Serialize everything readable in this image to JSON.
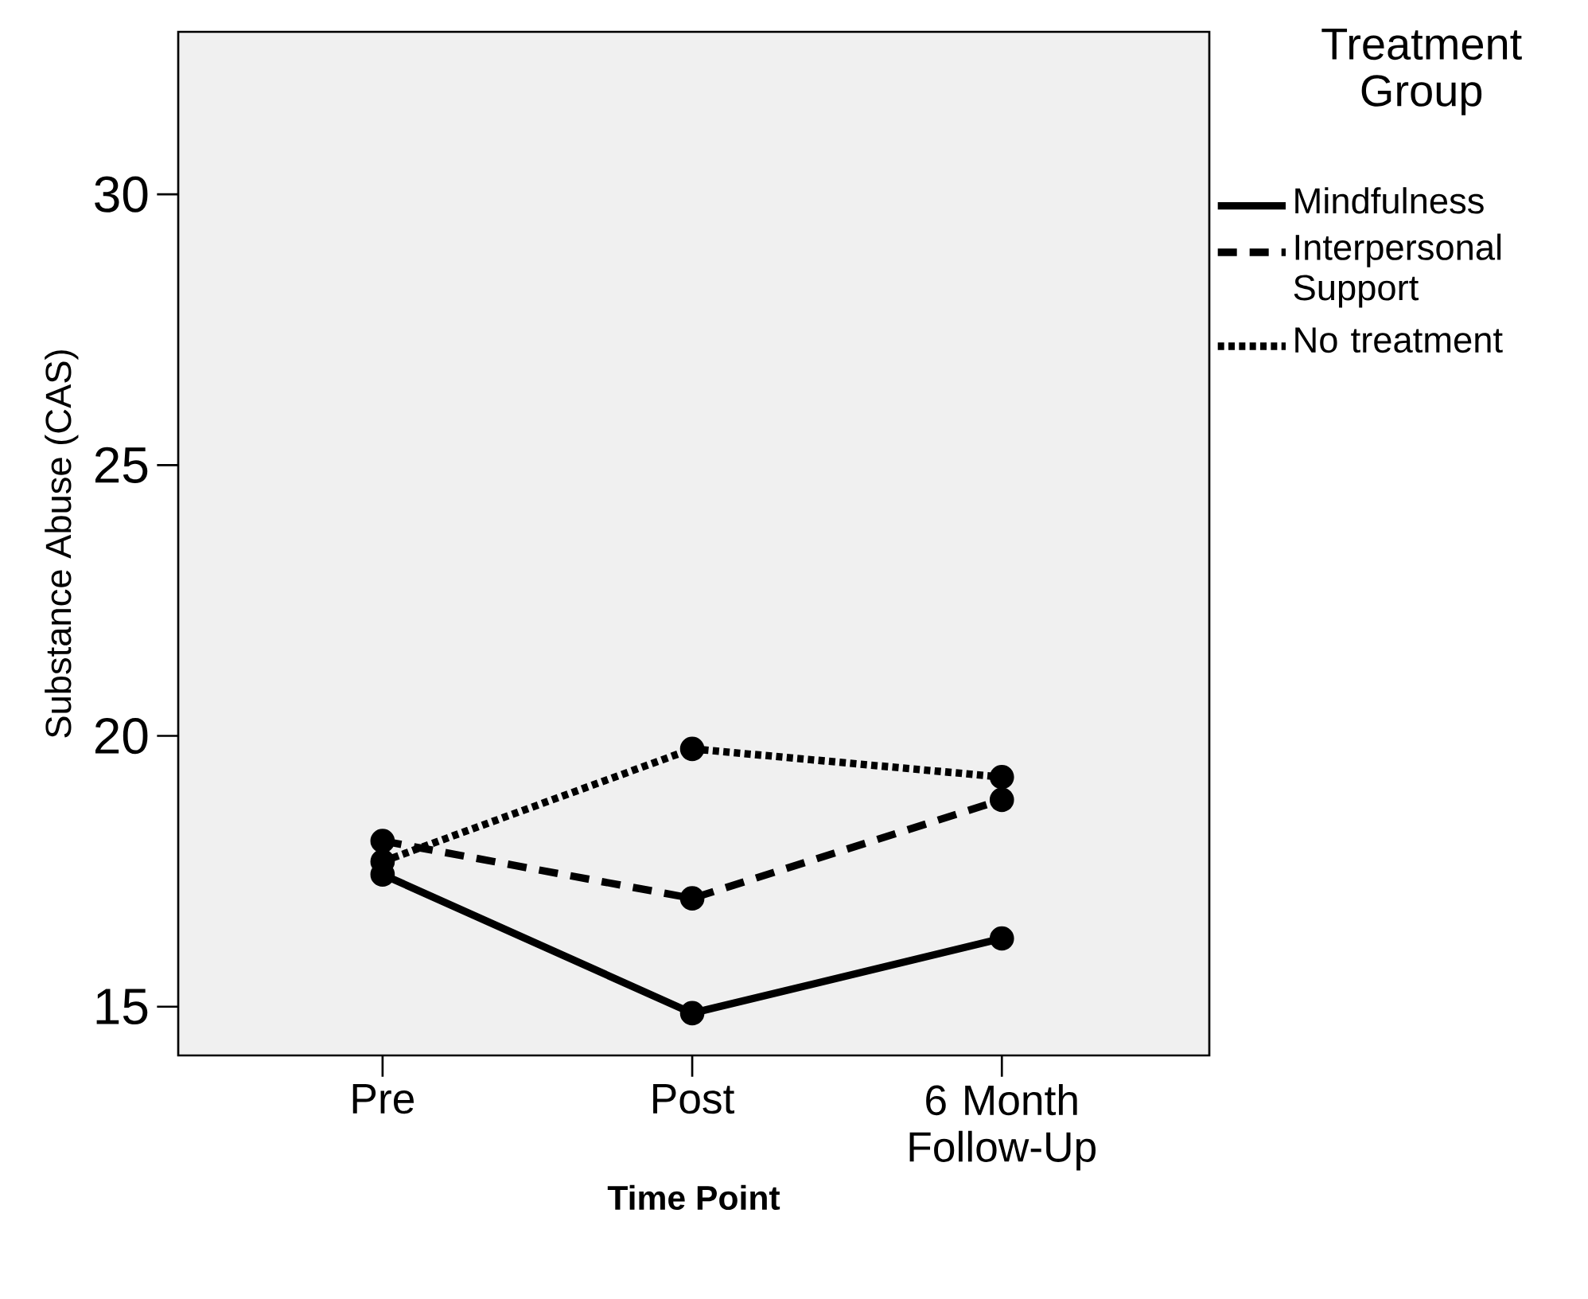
{
  "chart_data": {
    "type": "line",
    "xlabel": "Time Point",
    "ylabel": "Substance Abuse (CAS)",
    "legend_title": "Treatment Group",
    "categories": [
      "Pre",
      "Post",
      "6 Month Follow-Up"
    ],
    "series": [
      {
        "name": "Mindfulness",
        "color": "#000000",
        "line_style": "solid",
        "values": [
          17.44,
          14.88,
          16.26
        ]
      },
      {
        "name": "Interpersonal Support",
        "color": "#000000",
        "line_style": "dashed",
        "values": [
          18.06,
          17.0,
          18.82
        ]
      },
      {
        "name": "No treatment",
        "color": "#000000",
        "line_style": "dotted",
        "values": [
          17.68,
          19.76,
          19.24
        ]
      }
    ],
    "ylim": [
      14.1,
      33.0
    ],
    "yticks": [
      15,
      20,
      25,
      30
    ],
    "marker": "circle",
    "legend": "top right",
    "grid": false
  }
}
